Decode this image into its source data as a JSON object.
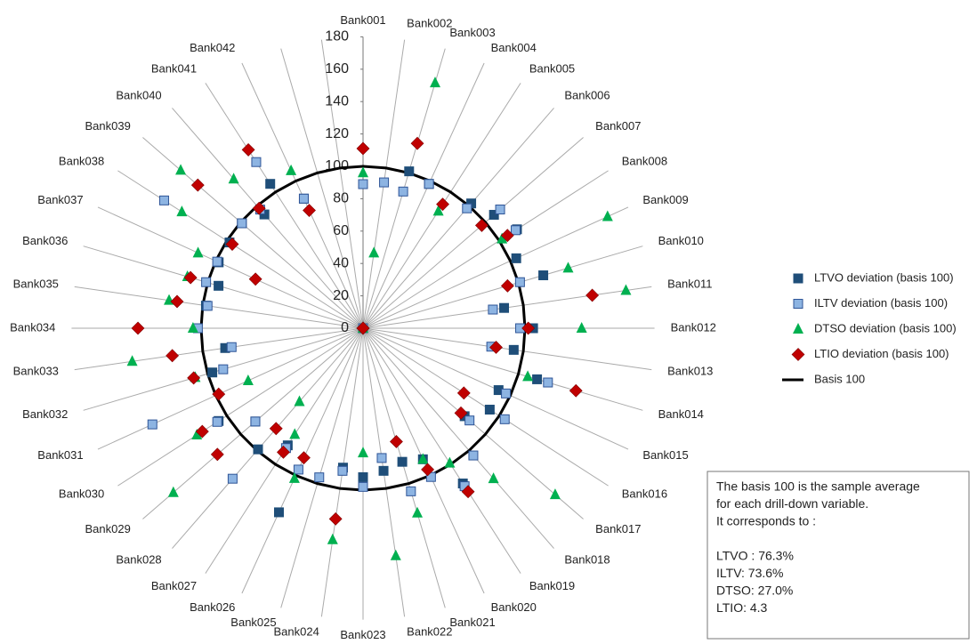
{
  "chart_data": {
    "type": "radar",
    "categories": [
      "Bank001",
      "Bank002",
      "Bank003",
      "Bank004",
      "Bank005",
      "Bank006",
      "Bank007",
      "Bank008",
      "Bank009",
      "Bank010",
      "Bank011",
      "Bank012",
      "Bank013",
      "Bank014",
      "Bank015",
      "Bank016",
      "Bank017",
      "Bank018",
      "Bank019",
      "Bank020",
      "Bank021",
      "Bank022",
      "Bank023",
      "Bank024",
      "Bank025",
      "Bank026",
      "Bank027",
      "Bank028",
      "Bank029",
      "Bank030",
      "Bank031",
      "Bank032",
      "Bank033",
      "Bank034",
      "Bank035",
      "Bank036",
      "Bank037",
      "Bank038",
      "Bank039",
      "Bank040",
      "Bank041",
      "Bank042",
      null,
      null
    ],
    "ylim": [
      0,
      180
    ],
    "yticks": [
      0,
      20,
      40,
      60,
      80,
      100,
      120,
      140,
      160,
      180
    ],
    "grid": true,
    "legend": "right",
    "series": [
      {
        "name": "LTVO deviation (basis 100)",
        "color": "#1f4e79",
        "marker": "square",
        "values": [
          null,
          null,
          101,
          98,
          null,
          102,
          107,
          113,
          104,
          116,
          88,
          105,
          94,
          112,
          92,
          93,
          83,
          null,
          114,
          89,
          86,
          89,
          92,
          87,
          null,
          125,
          86,
          99,
          88,
          106,
          null,
          97,
          86,
          null,
          98,
          93,
          98,
          98,
          99,
          93,
          106,
          88,
          0,
          0
        ]
      },
      {
        "name": "ILTV  deviation (basis 100)",
        "color": "#8db4e2",
        "marker": "square",
        "values": [
          89,
          91,
          88,
          98,
          null,
          98,
          112,
          112,
          null,
          101,
          81,
          97,
          80,
          119,
          97,
          104,
          87,
          104,
          116,
          101,
          105,
          81,
          98,
          89,
          96,
          96,
          88,
          123,
          88,
          107,
          143,
          90,
          82,
          102,
          97,
          101,
          99,
          146,
          99,
          97,
          122,
          88,
          0,
          0
        ]
      },
      {
        "name": "DTSO  deviation (basis 100)",
        "color": "#00b050",
        "marker": "triangle",
        "values": [
          96,
          47,
          158,
          null,
          86,
          null,
          null,
          102,
          166,
          132,
          164,
          135,
          null,
          106,
          null,
          null,
          157,
          123,
          99,
          89,
          119,
          142,
          77,
          132,
          null,
          102,
          78,
          60,
          155,
          122,
          78,
          108,
          144,
          105,
          121,
          113,
          112,
          133,
          149,
          122,
          null,
          107,
          0,
          0
        ]
      },
      {
        "name": "LTIO  deviation (basis 100)",
        "color": "#c00000",
        "marker": "diamond",
        "values": [
          111,
          null,
          119,
          null,
          91,
          null,
          97,
          106,
          null,
          93,
          143,
          102,
          83,
          137,
          null,
          74,
          80,
          null,
          120,
          96,
          73,
          null,
          null,
          119,
          null,
          88,
          91,
          82,
          119,
          118,
          98,
          109,
          119,
          139,
          116,
          111,
          73,
          96,
          135,
          98,
          131,
          80,
          0,
          0
        ]
      },
      {
        "name": "Basis 100",
        "color": "#000000",
        "marker": "line",
        "values": [
          100,
          100,
          100,
          100,
          100,
          100,
          100,
          100,
          100,
          100,
          100,
          100,
          100,
          100,
          100,
          100,
          100,
          100,
          100,
          100,
          100,
          100,
          100,
          100,
          100,
          100,
          100,
          100,
          100,
          100,
          100,
          100,
          100,
          100,
          100,
          100,
          100,
          100,
          100,
          100,
          100,
          100,
          100,
          100
        ]
      }
    ],
    "note": [
      "The basis  100 is the sample average",
      "for each drill-down variable.",
      "It corresponds to :",
      "LTVO : 76.3%",
      "ILTV: 73.6%",
      "DTSO: 27.0%",
      "LTIO: 4.3"
    ]
  }
}
